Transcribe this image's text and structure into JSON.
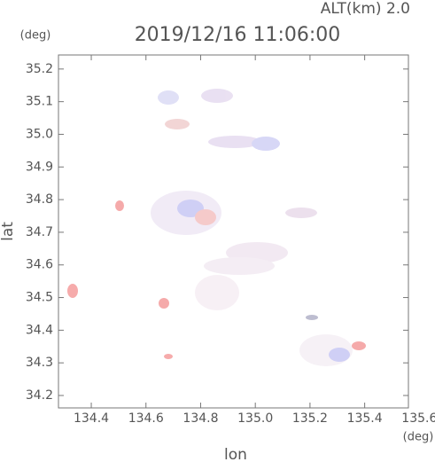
{
  "chart_data": {
    "type": "map",
    "title": "2019/12/16 11:06:00",
    "subtitle": "ALT(km) 2.0",
    "xlabel": "lon",
    "ylabel": "lat",
    "xunit": "(deg)",
    "yunit": "(deg)",
    "xlim": [
      134.28,
      135.56
    ],
    "ylim": [
      34.162,
      35.243
    ],
    "xticks": [
      134.4,
      134.6,
      134.8,
      {
        "value": 135.0,
        "label": "135.0"
      },
      135.2,
      135.4,
      135.6
    ],
    "yticks": [
      {
        "value": 34.2,
        "label": "34.2"
      },
      34.3,
      34.4,
      34.5,
      34.6,
      34.7,
      34.8,
      34.9,
      {
        "value": 35.0,
        "label": "35.0"
      },
      35.1,
      35.2
    ]
  }
}
